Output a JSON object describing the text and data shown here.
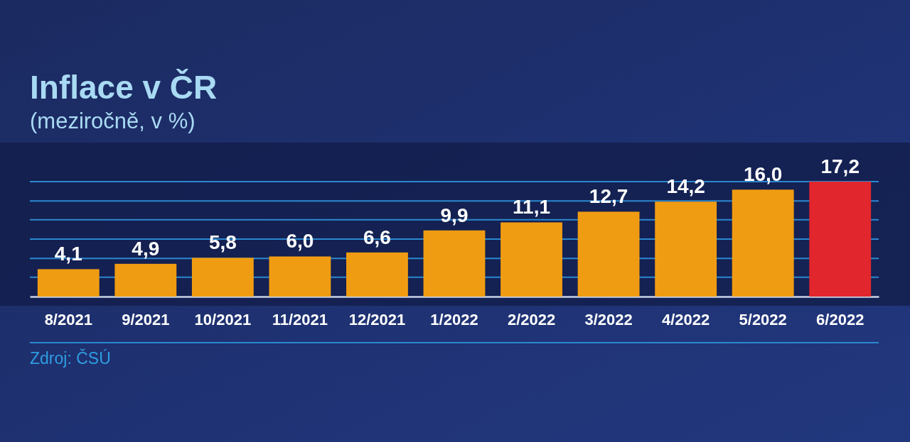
{
  "chart_data": {
    "type": "bar",
    "title": "Inflace v ČR",
    "subtitle": "(meziročně, v %)",
    "categories": [
      "8/2021",
      "9/2021",
      "10/2021",
      "11/2021",
      "12/2021",
      "1/2022",
      "2/2022",
      "3/2022",
      "4/2022",
      "5/2022",
      "6/2022"
    ],
    "values": [
      4.1,
      4.9,
      5.8,
      6.0,
      6.6,
      9.9,
      11.1,
      12.7,
      14.2,
      16.0,
      17.2
    ],
    "value_labels": [
      "4,1",
      "4,9",
      "5,8",
      "6,0",
      "6,6",
      "9,9",
      "11,1",
      "12,7",
      "14,2",
      "16,0",
      "17,2"
    ],
    "colors": [
      "#f09c12",
      "#f09c12",
      "#f09c12",
      "#f09c12",
      "#f09c12",
      "#f09c12",
      "#f09c12",
      "#f09c12",
      "#f09c12",
      "#f09c12",
      "#e1262d"
    ],
    "ylim": [
      0,
      17.2
    ],
    "yticks": [
      {
        "value": 2.9,
        "label": null
      },
      {
        "value": 5.7,
        "label": null
      },
      {
        "value": 8.6,
        "label": null
      },
      {
        "value": 11.5,
        "label": null
      },
      {
        "value": 14.3,
        "label": null
      },
      {
        "value": 17.2,
        "label": null
      }
    ],
    "grid": "y",
    "tick_labels": "x",
    "annotations": [
      "Zdroj: ČSÚ"
    ]
  }
}
